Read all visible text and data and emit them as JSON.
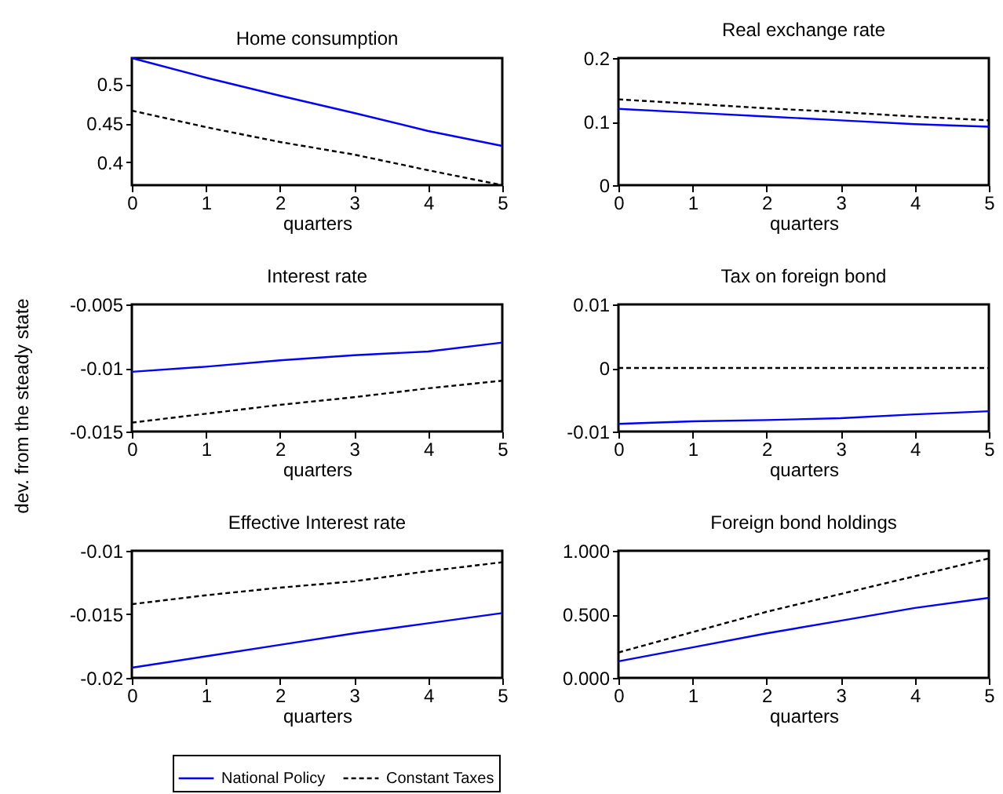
{
  "chart_data": [
    {
      "type": "line",
      "title": "Home consumption",
      "xlabel": "quarters",
      "x": [
        0,
        1,
        2,
        3,
        4,
        5
      ],
      "xlim": [
        0,
        5
      ],
      "xticks": [
        0,
        1,
        2,
        3,
        4,
        5
      ],
      "ylim": [
        0.371,
        0.533
      ],
      "yticks": [
        0.4,
        0.45,
        0.5
      ],
      "grid": false,
      "series": [
        {
          "color": "#0000ff",
          "line_style": "solid",
          "values": [
            0.533,
            0.508,
            0.485,
            0.463,
            0.44,
            0.421
          ]
        },
        {
          "color": "#000000",
          "line_style": "dashed",
          "values": [
            0.466,
            0.445,
            0.426,
            0.41,
            0.39,
            0.371
          ]
        }
      ]
    },
    {
      "type": "line",
      "title": "Real exchange rate",
      "xlabel": "quarters",
      "x": [
        0,
        1,
        2,
        3,
        4,
        5
      ],
      "xlim": [
        0,
        5
      ],
      "xticks": [
        0,
        1,
        2,
        3,
        4,
        5
      ],
      "ylim": [
        0,
        0.2
      ],
      "yticks": [
        0,
        0.1,
        0.2
      ],
      "grid": false,
      "series": [
        {
          "color": "#0000ff",
          "line_style": "solid",
          "values": [
            0.12,
            0.114,
            0.108,
            0.102,
            0.096,
            0.092
          ]
        },
        {
          "color": "#000000",
          "line_style": "dashed",
          "values": [
            0.135,
            0.128,
            0.121,
            0.115,
            0.108,
            0.102
          ]
        }
      ]
    },
    {
      "type": "line",
      "title": "Interest rate",
      "xlabel": "quarters",
      "ylabel": "dev. from the steady state",
      "x": [
        0,
        1,
        2,
        3,
        4,
        5
      ],
      "xlim": [
        0,
        5
      ],
      "xticks": [
        0,
        1,
        2,
        3,
        4,
        5
      ],
      "ylim": [
        -0.015,
        -0.005
      ],
      "yticks": [
        -0.015,
        -0.01,
        -0.005
      ],
      "grid": false,
      "series": [
        {
          "color": "#0000ff",
          "line_style": "solid",
          "values": [
            -0.0103,
            -0.0099,
            -0.0094,
            -0.009,
            -0.0087,
            -0.008
          ]
        },
        {
          "color": "#000000",
          "line_style": "dashed",
          "values": [
            -0.0143,
            -0.0136,
            -0.0129,
            -0.0123,
            -0.0116,
            -0.011
          ]
        }
      ]
    },
    {
      "type": "line",
      "title": "Tax on foreign bond",
      "xlabel": "quarters",
      "x": [
        0,
        1,
        2,
        3,
        4,
        5
      ],
      "xlim": [
        0,
        5
      ],
      "xticks": [
        0,
        1,
        2,
        3,
        4,
        5
      ],
      "ylim": [
        -0.01,
        0.01
      ],
      "yticks": [
        -0.01,
        0,
        0.01
      ],
      "grid": false,
      "series": [
        {
          "color": "#0000ff",
          "line_style": "solid",
          "values": [
            -0.0088,
            -0.0084,
            -0.0082,
            -0.0079,
            -0.0073,
            -0.0068
          ]
        },
        {
          "color": "#000000",
          "line_style": "dashed",
          "values": [
            0,
            0,
            0,
            0,
            0,
            0
          ]
        }
      ]
    },
    {
      "type": "line",
      "title": "Effective Interest rate",
      "xlabel": "quarters",
      "x": [
        0,
        1,
        2,
        3,
        4,
        5
      ],
      "xlim": [
        0,
        5
      ],
      "xticks": [
        0,
        1,
        2,
        3,
        4,
        5
      ],
      "ylim": [
        -0.02,
        -0.01
      ],
      "yticks": [
        -0.02,
        -0.015,
        -0.01
      ],
      "grid": false,
      "legend": "bottom",
      "series": [
        {
          "name": "National Policy",
          "color": "#0000ff",
          "line_style": "solid",
          "values": [
            -0.0192,
            -0.0183,
            -0.0174,
            -0.0165,
            -0.0157,
            -0.0149
          ]
        },
        {
          "name": "Constant Taxes",
          "color": "#000000",
          "line_style": "dashed",
          "values": [
            -0.0142,
            -0.0135,
            -0.0129,
            -0.0124,
            -0.0116,
            -0.0109
          ]
        }
      ]
    },
    {
      "type": "line",
      "title": "Foreign bond holdings",
      "xlabel": "quarters",
      "x": [
        0,
        1,
        2,
        3,
        4,
        5
      ],
      "xlim": [
        0,
        5
      ],
      "xticks": [
        0,
        1,
        2,
        3,
        4,
        5
      ],
      "ylim": [
        0,
        1
      ],
      "yticks": [
        {
          "value": 0,
          "label": "0.000"
        },
        {
          "value": 0.5,
          "label": "0.500"
        },
        {
          "value": 1,
          "label": "1.000"
        }
      ],
      "grid": false,
      "series": [
        {
          "color": "#0000ff",
          "line_style": "solid",
          "values": [
            0.13,
            0.24,
            0.35,
            0.45,
            0.55,
            0.63
          ]
        },
        {
          "color": "#000000",
          "line_style": "dashed",
          "values": [
            0.2,
            0.36,
            0.52,
            0.66,
            0.8,
            0.94
          ]
        }
      ]
    }
  ]
}
